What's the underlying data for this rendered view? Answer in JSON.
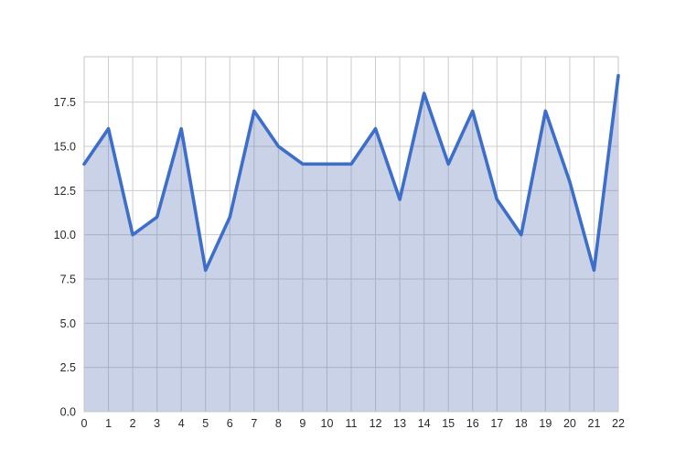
{
  "chart_data": {
    "type": "area",
    "title": "",
    "xlabel": "",
    "ylabel": "",
    "x": [
      0,
      1,
      2,
      3,
      4,
      5,
      6,
      7,
      8,
      9,
      10,
      11,
      12,
      13,
      14,
      15,
      16,
      17,
      18,
      19,
      20,
      21,
      22
    ],
    "values": [
      14,
      16,
      10,
      11,
      16,
      8,
      11,
      17,
      15,
      14,
      14,
      14,
      16,
      12,
      18,
      14,
      17,
      12,
      10,
      17,
      13,
      8,
      19
    ],
    "xlim": [
      0,
      22
    ],
    "ylim": [
      0,
      20.07
    ],
    "xtick_labels": [
      "0",
      "1",
      "2",
      "3",
      "4",
      "5",
      "6",
      "7",
      "8",
      "9",
      "10",
      "11",
      "12",
      "13",
      "14",
      "15",
      "16",
      "17",
      "18",
      "19",
      "20",
      "21",
      "22"
    ],
    "ytick_values": [
      0,
      2.5,
      5,
      7.5,
      10,
      12.5,
      15,
      17.5
    ],
    "ytick_labels": [
      "0.0",
      "2.5",
      "5.0",
      "7.5",
      "10.0",
      "12.5",
      "15.0",
      "17.5"
    ],
    "grid": true,
    "legend": false,
    "colors": {
      "line": "#3D6EC9",
      "fill_base": "#657FB8",
      "fill_opacity": 0.35,
      "grid": "#CCCCCC",
      "spine": "#C6C6C6",
      "tick_text": "#2A2A2A",
      "background": "#FFFFFF"
    }
  }
}
